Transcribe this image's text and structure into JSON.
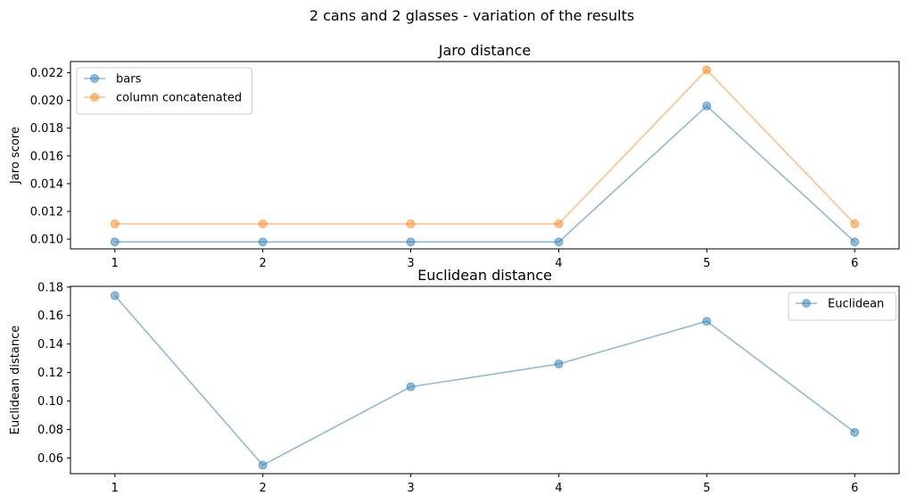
{
  "suptitle": "2 cans and 2 glasses - variation of the results",
  "chart_data": [
    {
      "type": "line",
      "title": "Jaro distance",
      "xlabel": "",
      "ylabel": "Jaro score",
      "x": [
        1,
        2,
        3,
        4,
        5,
        6
      ],
      "xticks": [
        "1",
        "2",
        "3",
        "4",
        "5",
        "6"
      ],
      "yticks": [
        "0.010",
        "0.012",
        "0.014",
        "0.016",
        "0.018",
        "0.020",
        "0.022"
      ],
      "ylim": [
        0.0093,
        0.0228
      ],
      "xlim": [
        0.7,
        6.3
      ],
      "grid": false,
      "legend": "upper-left",
      "series": [
        {
          "name": "bars",
          "color": "#1f77b4",
          "values": [
            0.0098,
            0.0098,
            0.0098,
            0.0098,
            0.0196,
            0.0098
          ]
        },
        {
          "name": "column concatenated",
          "color": "#ff7f0e",
          "values": [
            0.0111,
            0.0111,
            0.0111,
            0.0111,
            0.0222,
            0.0111
          ]
        }
      ]
    },
    {
      "type": "line",
      "title": "Euclidean distance",
      "xlabel": "",
      "ylabel": "Euclidean distance",
      "x": [
        1,
        2,
        3,
        4,
        5,
        6
      ],
      "xticks": [
        "1",
        "2",
        "3",
        "4",
        "5",
        "6"
      ],
      "yticks": [
        "0.06",
        "0.08",
        "0.10",
        "0.12",
        "0.14",
        "0.16",
        "0.18"
      ],
      "ylim": [
        0.049,
        0.1805
      ],
      "xlim": [
        0.7,
        6.3
      ],
      "grid": false,
      "legend": "upper-right",
      "series": [
        {
          "name": "Euclidean",
          "color": "#1f77b4",
          "values": [
            0.174,
            0.055,
            0.11,
            0.126,
            0.156,
            0.078
          ]
        }
      ]
    }
  ]
}
